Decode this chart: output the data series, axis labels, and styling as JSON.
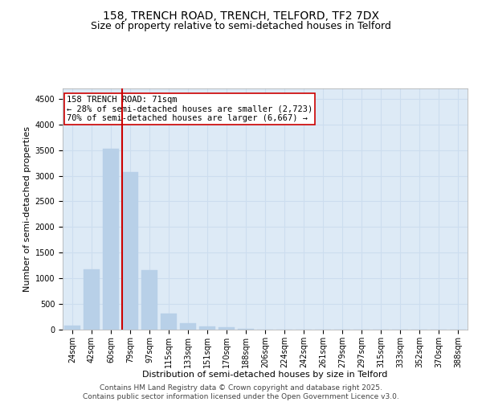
{
  "title_line1": "158, TRENCH ROAD, TRENCH, TELFORD, TF2 7DX",
  "title_line2": "Size of property relative to semi-detached houses in Telford",
  "xlabel": "Distribution of semi-detached houses by size in Telford",
  "ylabel": "Number of semi-detached properties",
  "categories": [
    "24sqm",
    "42sqm",
    "60sqm",
    "79sqm",
    "97sqm",
    "115sqm",
    "133sqm",
    "151sqm",
    "170sqm",
    "188sqm",
    "206sqm",
    "224sqm",
    "242sqm",
    "261sqm",
    "279sqm",
    "297sqm",
    "315sqm",
    "333sqm",
    "352sqm",
    "370sqm",
    "388sqm"
  ],
  "values": [
    80,
    1180,
    3520,
    3070,
    1160,
    320,
    130,
    60,
    40,
    15,
    5,
    2,
    1,
    1,
    0,
    0,
    0,
    0,
    0,
    0,
    0
  ],
  "bar_color": "#b8d0e8",
  "bar_edgecolor": "#b8d0e8",
  "vline_color": "#cc0000",
  "annotation_title": "158 TRENCH ROAD: 71sqm",
  "annotation_line1": "← 28% of semi-detached houses are smaller (2,723)",
  "annotation_line2": "70% of semi-detached houses are larger (6,667) →",
  "annotation_box_color": "#ffffff",
  "annotation_box_edgecolor": "#cc0000",
  "ylim": [
    0,
    4700
  ],
  "yticks": [
    0,
    500,
    1000,
    1500,
    2000,
    2500,
    3000,
    3500,
    4000,
    4500
  ],
  "grid_color": "#ccddef",
  "background_color": "#ddeaf6",
  "footer_line1": "Contains HM Land Registry data © Crown copyright and database right 2025.",
  "footer_line2": "Contains public sector information licensed under the Open Government Licence v3.0.",
  "title_fontsize": 10,
  "subtitle_fontsize": 9,
  "tick_fontsize": 7,
  "xlabel_fontsize": 8,
  "ylabel_fontsize": 8,
  "annotation_fontsize": 7.5,
  "footer_fontsize": 6.5
}
